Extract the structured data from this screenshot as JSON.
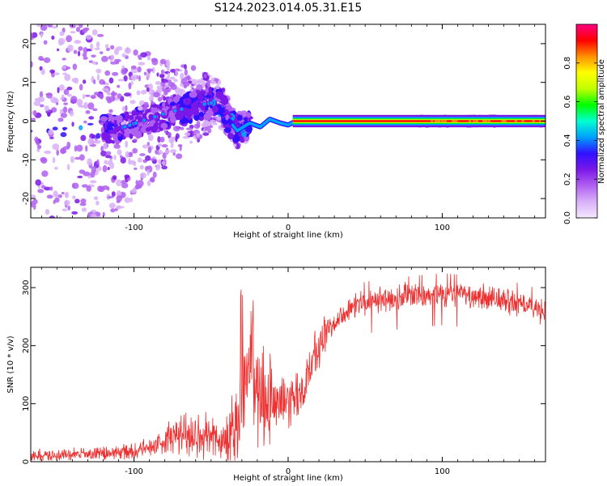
{
  "title": "S124.2023.014.05.31.E15",
  "colors": {
    "snr_line": "#ee3030",
    "frame": "#000000",
    "colormap": [
      "#f4e8ff",
      "#d8b0f8",
      "#b060f0",
      "#7a18e8",
      "#3010ff",
      "#00a0ff",
      "#00ffd0",
      "#00ff00",
      "#c0ff00",
      "#ffff00",
      "#ff9000",
      "#ff0000",
      "#ff0080"
    ]
  },
  "chart_data": [
    {
      "type": "heatmap",
      "xlabel": "Height of straight line (km)",
      "ylabel": "Frequency (Hz)",
      "xlim": [
        -167,
        167
      ],
      "ylim": [
        -25,
        25
      ],
      "xticks": [
        -100,
        0,
        100
      ],
      "yticks": [
        -20,
        -10,
        0,
        10,
        20
      ],
      "colorbar": {
        "label": "Normalized spectral amplitude",
        "range": [
          0,
          1
        ],
        "ticks": [
          "0.0",
          "0.2",
          "0.4",
          "0.6",
          "0.8"
        ]
      },
      "ridge": [
        {
          "x": -110,
          "y": -2
        },
        {
          "x": -95,
          "y": 0
        },
        {
          "x": -80,
          "y": 2
        },
        {
          "x": -60,
          "y": 4
        },
        {
          "x": -45,
          "y": 5
        },
        {
          "x": -38,
          "y": 0
        },
        {
          "x": -33,
          "y": -2.5
        },
        {
          "x": -25,
          "y": -0.5
        },
        {
          "x": -18,
          "y": -1.5
        },
        {
          "x": -12,
          "y": 0.5
        },
        {
          "x": -5,
          "y": -0.5
        },
        {
          "x": 0,
          "y": -1
        },
        {
          "x": 5,
          "y": 0
        },
        {
          "x": 167,
          "y": 0
        }
      ]
    },
    {
      "type": "line",
      "xlabel": "Height of straight line (km)",
      "ylabel": "SNR (10 * v/v)",
      "xlim": [
        -167,
        167
      ],
      "ylim": [
        0,
        335
      ],
      "xticks": [
        -100,
        0,
        100
      ],
      "yticks": [
        0,
        100,
        200,
        300
      ],
      "series": [
        {
          "x": [
            -167,
            -140,
            -120,
            -100,
            -90,
            -80,
            -70,
            -60,
            -50,
            -40,
            -35,
            -30,
            -27,
            -25,
            -20,
            -15,
            -10,
            -5,
            0,
            5,
            10,
            15,
            20,
            25,
            30,
            40,
            50,
            60,
            80,
            100,
            120,
            140,
            160,
            167
          ],
          "y": [
            10,
            12,
            14,
            18,
            25,
            35,
            45,
            50,
            40,
            35,
            55,
            100,
            150,
            170,
            120,
            110,
            100,
            105,
            100,
            105,
            130,
            170,
            200,
            225,
            245,
            265,
            275,
            280,
            285,
            290,
            285,
            280,
            265,
            260
          ]
        }
      ]
    }
  ]
}
